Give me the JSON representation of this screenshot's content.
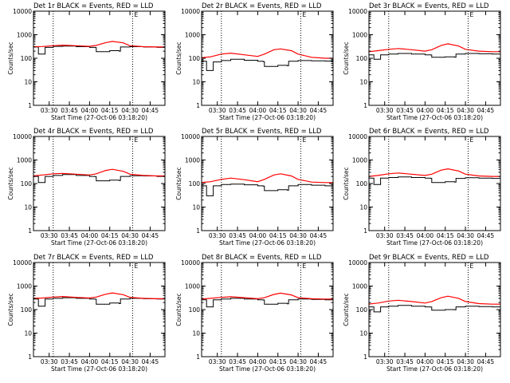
{
  "colors": {
    "events": "#000000",
    "lld": "#ff0000",
    "background": "#ffffff"
  },
  "common": {
    "xlabel": "Start Time (27-Oct-06 03:18:20)",
    "ylabel": "Counts/sec",
    "x_tick_labels": [
      "03:30",
      "03:45",
      "04:00",
      "04:15",
      "04:30",
      "04:45"
    ],
    "x_tick_values": [
      "03:30",
      "03:45",
      "04:00",
      "04:15",
      "04:30",
      "04:45"
    ],
    "xlim": [
      "03:18:20",
      "04:56:00"
    ],
    "y_tick_labels": [
      "1",
      "10",
      "100",
      "1000",
      "10000"
    ],
    "ylim": [
      1,
      10000
    ],
    "y_scale": "log",
    "dotted_vlines": [
      "03:33",
      "04:32"
    ],
    "marker_glyph": "E"
  },
  "chart_data": [
    {
      "type": "line",
      "title": "Det 1r BLACK = Events, RED = LLD",
      "series": [
        {
          "name": "Events",
          "color": "#000000",
          "x": [
            "03:18",
            "03:21",
            "03:22",
            "03:26",
            "03:27",
            "03:33",
            "03:40",
            "03:50",
            "04:00",
            "04:04",
            "04:05",
            "04:15",
            "04:22",
            "04:23",
            "04:30",
            "04:40",
            "04:50",
            "04:56"
          ],
          "y": [
            300,
            300,
            150,
            150,
            290,
            320,
            330,
            310,
            290,
            285,
            190,
            210,
            200,
            300,
            310,
            300,
            290,
            290
          ]
        },
        {
          "name": "LLD",
          "color": "#ff0000",
          "x": [
            "03:18",
            "03:25",
            "03:33",
            "03:40",
            "03:50",
            "04:00",
            "04:05",
            "04:12",
            "04:17",
            "04:25",
            "04:30",
            "04:40",
            "04:50",
            "04:56"
          ],
          "y": [
            310,
            315,
            340,
            360,
            340,
            320,
            350,
            460,
            520,
            450,
            340,
            310,
            300,
            300
          ]
        }
      ]
    },
    {
      "type": "line",
      "title": "Det 2r BLACK = Events, RED = LLD",
      "series": [
        {
          "name": "Events",
          "color": "#000000",
          "x": [
            "03:18",
            "03:21",
            "03:22",
            "03:26",
            "03:27",
            "03:33",
            "03:40",
            "03:50",
            "04:00",
            "04:04",
            "04:05",
            "04:15",
            "04:22",
            "04:23",
            "04:30",
            "04:40",
            "04:50",
            "04:56"
          ],
          "y": [
            75,
            75,
            30,
            30,
            70,
            80,
            90,
            82,
            75,
            72,
            45,
            50,
            48,
            75,
            80,
            78,
            76,
            75
          ]
        },
        {
          "name": "LLD",
          "color": "#ff0000",
          "x": [
            "03:18",
            "03:25",
            "03:33",
            "03:40",
            "03:50",
            "04:00",
            "04:05",
            "04:12",
            "04:17",
            "04:25",
            "04:30",
            "04:40",
            "04:50",
            "04:56"
          ],
          "y": [
            105,
            115,
            150,
            165,
            140,
            120,
            150,
            230,
            250,
            210,
            150,
            110,
            100,
            100
          ]
        }
      ]
    },
    {
      "type": "line",
      "title": "Det 3r BLACK = Events, RED = LLD",
      "series": [
        {
          "name": "Events",
          "color": "#000000",
          "x": [
            "03:18",
            "03:21",
            "03:22",
            "03:26",
            "03:27",
            "03:33",
            "03:40",
            "03:50",
            "04:00",
            "04:04",
            "04:05",
            "04:15",
            "04:22",
            "04:23",
            "04:30",
            "04:40",
            "04:50",
            "04:56"
          ],
          "y": [
            140,
            140,
            90,
            90,
            140,
            150,
            160,
            150,
            140,
            138,
            110,
            115,
            110,
            150,
            160,
            155,
            150,
            150
          ]
        },
        {
          "name": "LLD",
          "color": "#ff0000",
          "x": [
            "03:18",
            "03:25",
            "03:33",
            "03:40",
            "03:50",
            "04:00",
            "04:05",
            "04:12",
            "04:17",
            "04:25",
            "04:30",
            "04:40",
            "04:50",
            "04:56"
          ],
          "y": [
            190,
            210,
            240,
            260,
            230,
            200,
            230,
            350,
            410,
            330,
            240,
            200,
            190,
            190
          ]
        }
      ]
    },
    {
      "type": "line",
      "title": "Det 4r BLACK = Events, RED = LLD",
      "series": [
        {
          "name": "Events",
          "color": "#000000",
          "x": [
            "03:18",
            "03:21",
            "03:22",
            "03:26",
            "03:27",
            "03:33",
            "03:40",
            "03:50",
            "04:00",
            "04:04",
            "04:05",
            "04:15",
            "04:22",
            "04:23",
            "04:30",
            "04:40",
            "04:50",
            "04:56"
          ],
          "y": [
            200,
            200,
            110,
            110,
            200,
            220,
            240,
            220,
            200,
            195,
            130,
            140,
            135,
            200,
            215,
            210,
            200,
            200
          ]
        },
        {
          "name": "LLD",
          "color": "#ff0000",
          "x": [
            "03:18",
            "03:25",
            "03:33",
            "03:40",
            "03:50",
            "04:00",
            "04:05",
            "04:12",
            "04:17",
            "04:25",
            "04:30",
            "04:40",
            "04:50",
            "04:56"
          ],
          "y": [
            210,
            230,
            260,
            270,
            250,
            230,
            260,
            360,
            400,
            330,
            250,
            220,
            210,
            210
          ]
        }
      ]
    },
    {
      "type": "line",
      "title": "Det 5r BLACK = Events, RED = LLD",
      "series": [
        {
          "name": "Events",
          "color": "#000000",
          "x": [
            "03:18",
            "03:21",
            "03:22",
            "03:26",
            "03:27",
            "03:33",
            "03:40",
            "03:50",
            "04:00",
            "04:04",
            "04:05",
            "04:15",
            "04:22",
            "04:23",
            "04:30",
            "04:40",
            "04:50",
            "04:56"
          ],
          "y": [
            80,
            80,
            30,
            30,
            80,
            90,
            95,
            88,
            80,
            78,
            50,
            55,
            52,
            80,
            90,
            85,
            80,
            80
          ]
        },
        {
          "name": "LLD",
          "color": "#ff0000",
          "x": [
            "03:18",
            "03:25",
            "03:33",
            "03:40",
            "03:50",
            "04:00",
            "04:05",
            "04:12",
            "04:17",
            "04:25",
            "04:30",
            "04:40",
            "04:50",
            "04:56"
          ],
          "y": [
            110,
            120,
            150,
            170,
            145,
            120,
            150,
            230,
            260,
            210,
            150,
            115,
            110,
            110
          ]
        }
      ]
    },
    {
      "type": "line",
      "title": "Det 6r BLACK = Events, RED = LLD",
      "series": [
        {
          "name": "Events",
          "color": "#000000",
          "x": [
            "03:18",
            "03:21",
            "03:22",
            "03:26",
            "03:27",
            "03:33",
            "03:40",
            "03:50",
            "04:00",
            "04:04",
            "04:05",
            "04:15",
            "04:22",
            "04:23",
            "04:30",
            "04:40",
            "04:50",
            "04:56"
          ],
          "y": [
            170,
            170,
            90,
            90,
            170,
            180,
            190,
            180,
            170,
            165,
            110,
            120,
            115,
            165,
            175,
            170,
            165,
            165
          ]
        },
        {
          "name": "LLD",
          "color": "#ff0000",
          "x": [
            "03:18",
            "03:25",
            "03:33",
            "03:40",
            "03:50",
            "04:00",
            "04:05",
            "04:12",
            "04:17",
            "04:25",
            "04:30",
            "04:40",
            "04:50",
            "04:56"
          ],
          "y": [
            200,
            220,
            260,
            280,
            250,
            220,
            250,
            370,
            420,
            340,
            250,
            210,
            200,
            200
          ]
        }
      ]
    },
    {
      "type": "line",
      "title": "Det 7r BLACK = Events, RED = LLD",
      "series": [
        {
          "name": "Events",
          "color": "#000000",
          "x": [
            "03:18",
            "03:21",
            "03:22",
            "03:26",
            "03:27",
            "03:33",
            "03:40",
            "03:50",
            "04:00",
            "04:04",
            "04:05",
            "04:15",
            "04:22",
            "04:23",
            "04:30",
            "04:40",
            "04:50",
            "04:56"
          ],
          "y": [
            280,
            280,
            140,
            140,
            280,
            300,
            320,
            300,
            280,
            275,
            170,
            190,
            180,
            280,
            300,
            290,
            280,
            280
          ]
        },
        {
          "name": "LLD",
          "color": "#ff0000",
          "x": [
            "03:18",
            "03:25",
            "03:33",
            "03:40",
            "03:50",
            "04:00",
            "04:05",
            "04:12",
            "04:17",
            "04:25",
            "04:30",
            "04:40",
            "04:50",
            "04:56"
          ],
          "y": [
            300,
            310,
            340,
            360,
            330,
            310,
            340,
            450,
            510,
            430,
            330,
            300,
            290,
            290
          ]
        }
      ]
    },
    {
      "type": "line",
      "title": "Det 8r BLACK = Events, RED = LLD",
      "series": [
        {
          "name": "Events",
          "color": "#000000",
          "x": [
            "03:18",
            "03:21",
            "03:22",
            "03:26",
            "03:27",
            "03:33",
            "03:40",
            "03:50",
            "04:00",
            "04:04",
            "04:05",
            "04:15",
            "04:22",
            "04:23",
            "04:30",
            "04:40",
            "04:50",
            "04:56"
          ],
          "y": [
            260,
            260,
            130,
            130,
            260,
            280,
            300,
            280,
            260,
            255,
            170,
            185,
            175,
            260,
            280,
            270,
            260,
            260
          ]
        },
        {
          "name": "LLD",
          "color": "#ff0000",
          "x": [
            "03:18",
            "03:25",
            "03:33",
            "03:40",
            "03:50",
            "04:00",
            "04:05",
            "04:12",
            "04:17",
            "04:25",
            "04:30",
            "04:40",
            "04:50",
            "04:56"
          ],
          "y": [
            280,
            300,
            330,
            350,
            320,
            290,
            320,
            440,
            500,
            420,
            320,
            290,
            280,
            280
          ]
        }
      ]
    },
    {
      "type": "line",
      "title": "Det 9r BLACK = Events, RED = LLD",
      "series": [
        {
          "name": "Events",
          "color": "#000000",
          "x": [
            "03:18",
            "03:21",
            "03:22",
            "03:26",
            "03:27",
            "03:33",
            "03:40",
            "03:50",
            "04:00",
            "04:04",
            "04:05",
            "04:15",
            "04:22",
            "04:23",
            "04:30",
            "04:40",
            "04:50",
            "04:56"
          ],
          "y": [
            130,
            130,
            80,
            80,
            130,
            140,
            150,
            140,
            130,
            128,
            95,
            100,
            98,
            130,
            140,
            135,
            130,
            130
          ]
        },
        {
          "name": "LLD",
          "color": "#ff0000",
          "x": [
            "03:18",
            "03:25",
            "03:33",
            "03:40",
            "03:50",
            "04:00",
            "04:05",
            "04:12",
            "04:17",
            "04:25",
            "04:30",
            "04:40",
            "04:50",
            "04:56"
          ],
          "y": [
            170,
            190,
            230,
            250,
            220,
            190,
            220,
            320,
            370,
            300,
            220,
            180,
            170,
            170
          ]
        }
      ]
    }
  ]
}
